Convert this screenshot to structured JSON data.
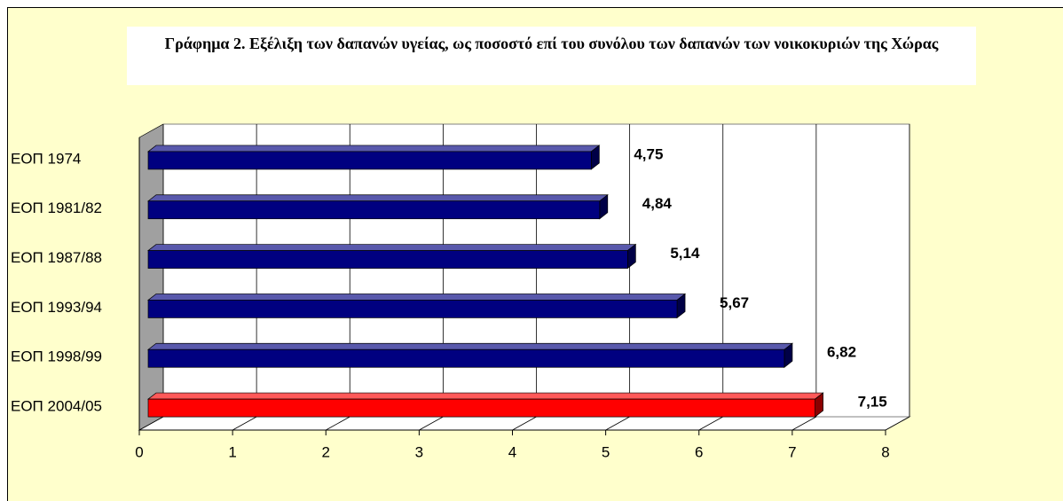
{
  "chart_data": {
    "type": "bar3d_horizontal",
    "title": "Γράφημα 2. Εξέλιξη των δαπανών υγείας, ως ποσοστό επί του συνόλου των δαπανών των νοικοκυριών της Χώρας",
    "categories": [
      "ΕΟΠ 1974",
      "ΕΟΠ 1981/82",
      "ΕΟΠ 1987/88",
      "ΕΟΠ 1993/94",
      "ΕΟΠ 1998/99",
      "ΕΟΠ 2004/05"
    ],
    "values": [
      4.75,
      4.84,
      5.14,
      5.67,
      6.82,
      7.15
    ],
    "value_labels": [
      "4,75",
      "4,84",
      "5,14",
      "5,67",
      "6,82",
      "7,15"
    ],
    "colors": [
      "#000080",
      "#000080",
      "#000080",
      "#000080",
      "#000080",
      "#ff0000"
    ],
    "xlim": [
      0,
      8
    ],
    "xticks": [
      0,
      1,
      2,
      3,
      4,
      5,
      6,
      7,
      8
    ],
    "grid": true
  }
}
